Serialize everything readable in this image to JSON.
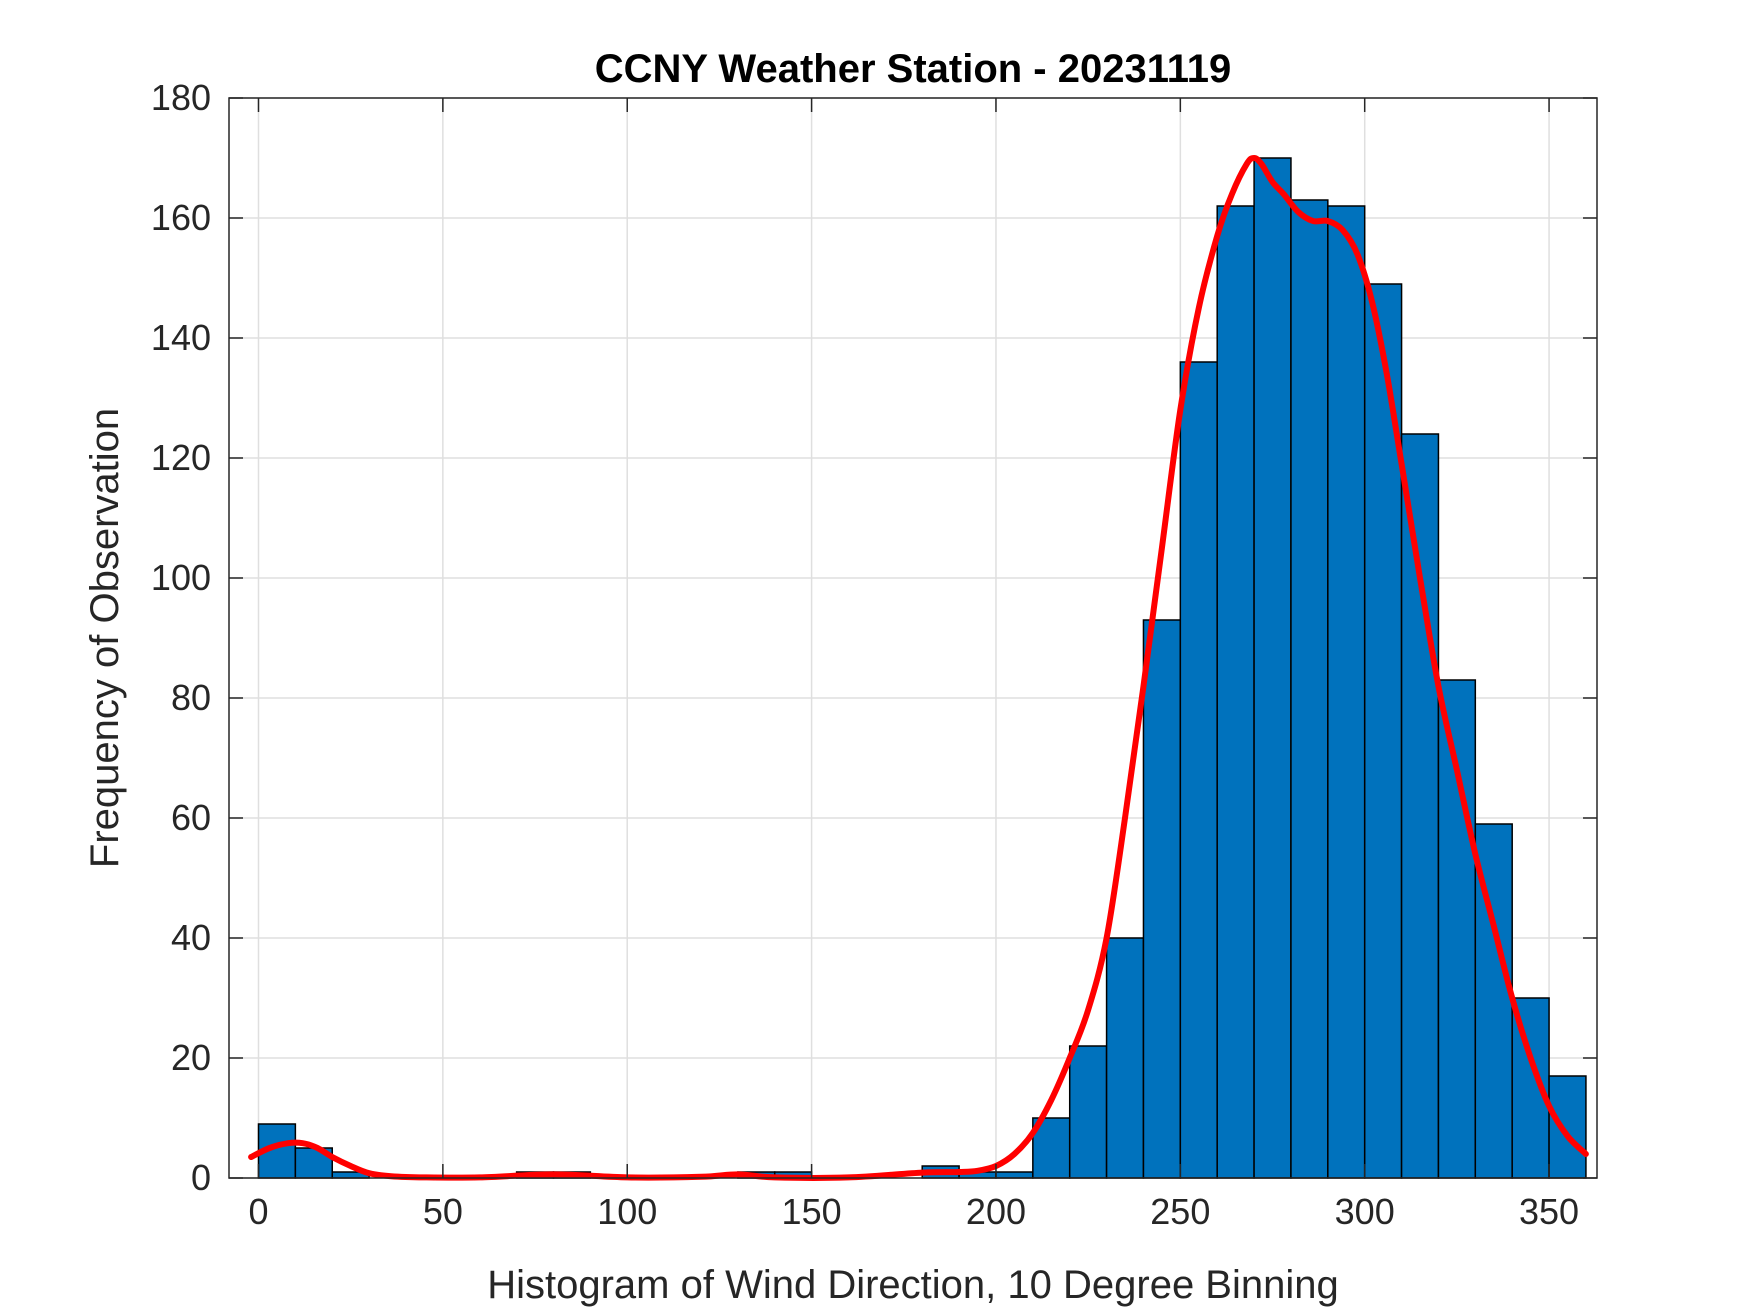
{
  "chart_data": {
    "type": "bar",
    "title": "CCNY Weather Station - 20231119",
    "xlabel": "Histogram of Wind Direction, 10 Degree Binning",
    "ylabel": "Frequency of Observation",
    "xlim": [
      -8,
      363
    ],
    "ylim": [
      0,
      180
    ],
    "xticks": [
      0,
      50,
      100,
      150,
      200,
      250,
      300,
      350
    ],
    "yticks": [
      0,
      20,
      40,
      60,
      80,
      100,
      120,
      140,
      160,
      180
    ],
    "grid": true,
    "bin_edges": [
      0,
      10,
      20,
      30,
      40,
      50,
      60,
      70,
      80,
      90,
      100,
      110,
      120,
      130,
      140,
      150,
      160,
      170,
      180,
      190,
      200,
      210,
      220,
      230,
      240,
      250,
      260,
      270,
      280,
      290,
      300,
      310,
      320,
      330,
      340,
      350,
      360
    ],
    "values": [
      9,
      5,
      1,
      0,
      0,
      0,
      0,
      1,
      1,
      0,
      0,
      0,
      0,
      1,
      1,
      0,
      0,
      0,
      2,
      1,
      1,
      10,
      22,
      40,
      93,
      136,
      162,
      170,
      163,
      162,
      149,
      124,
      83,
      59,
      30,
      17
    ],
    "bar_color": "#0072BD",
    "curve": {
      "color": "#FF0000",
      "x": [
        -2,
        3,
        8,
        12,
        16,
        20,
        25,
        30,
        36,
        45,
        60,
        80,
        100,
        120,
        130,
        140,
        160,
        180,
        190,
        195,
        200,
        205,
        210,
        215,
        220,
        225,
        230,
        235,
        240,
        245,
        250,
        255,
        260,
        264,
        268,
        270,
        272,
        275,
        278,
        282,
        286,
        290,
        294,
        298,
        302,
        306,
        310,
        315,
        320,
        325,
        330,
        335,
        340,
        345,
        350,
        355,
        360
      ],
      "y": [
        3.5,
        5,
        5.8,
        5.8,
        5,
        3.5,
        2,
        0.8,
        0.3,
        0.1,
        0.1,
        0.6,
        0.1,
        0.2,
        0.6,
        0.1,
        0.1,
        0.9,
        1,
        1.2,
        2,
        4,
        7.5,
        13,
        20,
        28,
        40,
        60,
        82,
        105,
        128,
        145,
        157,
        164,
        169,
        170,
        169,
        166,
        164,
        161,
        159.5,
        159.5,
        158,
        154,
        146,
        134,
        119,
        100,
        82,
        68,
        54,
        42,
        30,
        20,
        12,
        7,
        4
      ]
    }
  }
}
